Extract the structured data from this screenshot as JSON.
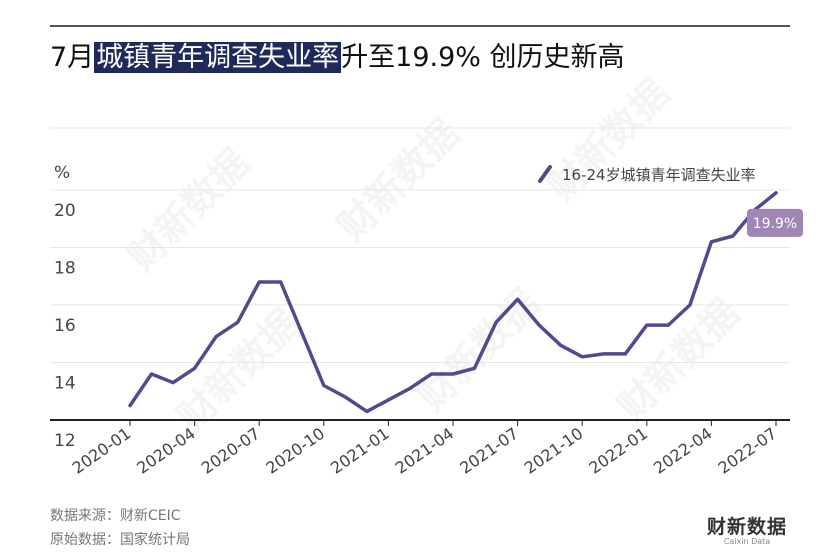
{
  "title": {
    "prefix": "7月",
    "highlight": "城镇青年调查失业率",
    "suffix": "升至19.9% 创历史新高"
  },
  "watermark": "财新数据",
  "chart_data": {
    "type": "line",
    "ylabel": "%",
    "ylim": [
      12,
      20
    ],
    "y_ticks": [
      12,
      14,
      16,
      18,
      20
    ],
    "x_tick_labels": [
      "2020-01",
      "2020-04",
      "2020-07",
      "2020-10",
      "2021-01",
      "2021-04",
      "2021-07",
      "2021-10",
      "2022-01",
      "2022-04",
      "2022-07"
    ],
    "x": [
      "2020-01",
      "2020-02",
      "2020-03",
      "2020-04",
      "2020-05",
      "2020-06",
      "2020-07",
      "2020-08",
      "2020-09",
      "2020-10",
      "2020-11",
      "2020-12",
      "2021-01",
      "2021-02",
      "2021-03",
      "2021-04",
      "2021-05",
      "2021-06",
      "2021-07",
      "2021-08",
      "2021-09",
      "2021-10",
      "2021-11",
      "2021-12",
      "2022-01",
      "2022-02",
      "2022-03",
      "2022-04",
      "2022-05",
      "2022-06",
      "2022-07"
    ],
    "series": [
      {
        "name": "16-24岁城镇青年调查失业率",
        "color": "#524a8e",
        "values": [
          12.5,
          13.6,
          13.3,
          13.8,
          14.9,
          15.4,
          16.8,
          16.8,
          15.0,
          13.2,
          12.8,
          12.3,
          12.7,
          13.1,
          13.6,
          13.6,
          13.8,
          15.4,
          16.2,
          15.3,
          14.6,
          14.2,
          14.3,
          14.3,
          15.3,
          15.3,
          16.0,
          18.2,
          18.4,
          19.3,
          19.9
        ]
      }
    ],
    "annotation": {
      "label": "19.9%",
      "color": "#a085b7"
    },
    "legend_position": "top-right",
    "grid": true
  },
  "footer": {
    "source": "数据来源：财新CEIC",
    "original": "原始数据：国家统计局"
  },
  "brand": {
    "cn": "财新数据",
    "en": "Caixin Data"
  }
}
